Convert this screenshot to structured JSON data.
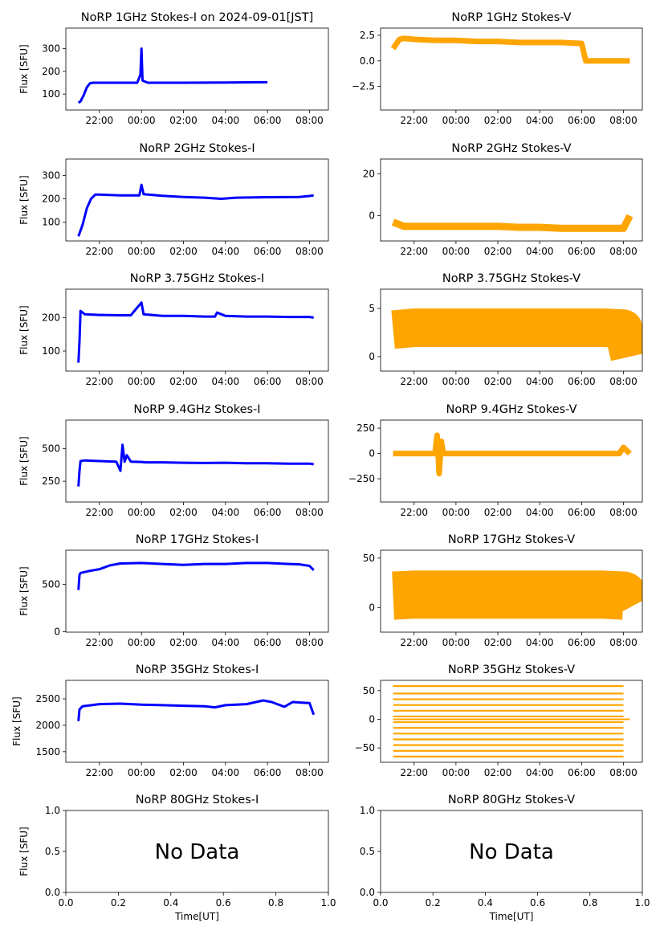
{
  "figure": {
    "x_label": "Time[UT]",
    "y_label": "Flux [SFU]",
    "no_data_text": "No Data",
    "colors": {
      "stokes_i": "#0000ff",
      "stokes_v": "#ffa500"
    },
    "time_ticks": [
      "22:00",
      "00:00",
      "02:00",
      "04:00",
      "06:00",
      "08:00"
    ],
    "time_tick_hours": [
      22,
      24,
      26,
      28,
      30,
      32
    ],
    "xlim_hours": [
      20.4,
      32.9
    ]
  },
  "chart_data": [
    {
      "type": "line",
      "title": "NoRP 1GHz Stokes-I on 2024-09-01[JST]",
      "ylabel": "Flux [SFU]",
      "xlabel": "",
      "color": "#0000ff",
      "ylim": [
        30,
        390
      ],
      "yticks": [
        100,
        200,
        300
      ],
      "series": [
        {
          "x": [
            21.0,
            21.1,
            21.25,
            21.4,
            21.55,
            21.7,
            22.5,
            23.0,
            23.8,
            23.95,
            24.0,
            24.05,
            24.3,
            26.0,
            28.0,
            29.5,
            30.0
          ],
          "y": [
            62,
            68,
            95,
            130,
            148,
            150,
            150,
            150,
            150,
            185,
            300,
            160,
            150,
            150,
            151,
            152,
            152
          ]
        }
      ]
    },
    {
      "type": "line",
      "title": "NoRP 1GHz Stokes-V",
      "ylabel": "",
      "xlabel": "",
      "color": "#ffa500",
      "ylim": [
        -4.8,
        3.2
      ],
      "yticks": [
        -2.5,
        0.0,
        2.5
      ],
      "ytick_labels": [
        "−2.5",
        "0.0",
        "2.5"
      ],
      "series": [
        {
          "x": [
            21.0,
            21.3,
            21.5,
            22.0,
            23.0,
            24.0,
            25.0,
            26.0,
            27.0,
            28.0,
            29.0,
            30.0,
            30.2,
            32.3
          ],
          "y": [
            1.2,
            2.1,
            2.2,
            2.1,
            2.0,
            2.0,
            1.9,
            1.9,
            1.8,
            1.8,
            1.8,
            1.7,
            0.0,
            0.0
          ]
        }
      ]
    },
    {
      "type": "line",
      "title": "NoRP 2GHz Stokes-I",
      "ylabel": "Flux [SFU]",
      "xlabel": "",
      "color": "#0000ff",
      "ylim": [
        20,
        370
      ],
      "yticks": [
        100,
        200,
        300
      ],
      "series": [
        {
          "x": [
            21.0,
            21.2,
            21.4,
            21.6,
            21.8,
            22.0,
            23.0,
            23.9,
            24.0,
            24.1,
            25.0,
            26.0,
            27.0,
            27.8,
            28.5,
            30.0,
            31.5,
            32.0,
            32.2
          ],
          "y": [
            40,
            90,
            160,
            200,
            218,
            218,
            215,
            215,
            260,
            220,
            213,
            208,
            205,
            200,
            205,
            207,
            208,
            212,
            215
          ]
        }
      ]
    },
    {
      "type": "line",
      "title": "NoRP 2GHz Stokes-V",
      "ylabel": "",
      "xlabel": "",
      "color": "#ffa500",
      "ylim": [
        -12,
        27
      ],
      "yticks": [
        0,
        20
      ],
      "series": [
        {
          "x": [
            21.0,
            21.5,
            22.0,
            23.0,
            24.0,
            25.0,
            26.0,
            27.0,
            28.0,
            29.0,
            30.0,
            31.0,
            32.0,
            32.3
          ],
          "y": [
            -3,
            -5,
            -5,
            -5,
            -5,
            -5,
            -5,
            -5.5,
            -5.5,
            -6,
            -6,
            -6,
            -6,
            0
          ]
        }
      ]
    },
    {
      "type": "line",
      "title": "NoRP 3.75GHz Stokes-I",
      "ylabel": "Flux [SFU]",
      "xlabel": "",
      "color": "#0000ff",
      "ylim": [
        40,
        285
      ],
      "yticks": [
        100,
        200
      ],
      "series": [
        {
          "x": [
            21.0,
            21.05,
            21.1,
            21.3,
            22.0,
            23.0,
            23.5,
            23.6,
            24.0,
            24.1,
            25.0,
            26.0,
            27.0,
            27.5,
            27.6,
            28.0,
            29.0,
            30.0,
            31.0,
            32.0,
            32.2
          ],
          "y": [
            65,
            130,
            220,
            210,
            208,
            207,
            207,
            215,
            245,
            210,
            205,
            205,
            203,
            203,
            215,
            205,
            203,
            203,
            202,
            202,
            200
          ]
        }
      ]
    },
    {
      "type": "line",
      "title": "NoRP 3.75GHz Stokes-V",
      "ylabel": "",
      "xlabel": "",
      "color": "#ffa500",
      "ylim": [
        -1.5,
        7.0
      ],
      "yticks": [
        0,
        5
      ],
      "series": [
        {
          "x": [
            21.0,
            22.0,
            23.0,
            24.0,
            25.0,
            26.0,
            27.0,
            28.0,
            29.0,
            30.0,
            31.0,
            32.0,
            32.3
          ],
          "y": [
            2.8,
            3.0,
            3.0,
            3.0,
            3.0,
            3.0,
            3.0,
            3.0,
            3.0,
            3.0,
            3.0,
            2.9,
            0.0
          ]
        }
      ]
    },
    {
      "type": "line",
      "title": "NoRP 9.4GHz Stokes-I",
      "ylabel": "Flux [SFU]",
      "xlabel": "",
      "color": "#0000ff",
      "ylim": [
        90,
        720
      ],
      "yticks": [
        250,
        500
      ],
      "series": [
        {
          "x": [
            21.0,
            21.05,
            21.1,
            21.3,
            22.0,
            22.8,
            23.0,
            23.1,
            23.2,
            23.3,
            23.5,
            24.0,
            24.2,
            25.0,
            26.0,
            27.0,
            28.0,
            29.0,
            30.0,
            31.0,
            32.0,
            32.2
          ],
          "y": [
            210,
            330,
            405,
            410,
            405,
            400,
            330,
            530,
            400,
            450,
            400,
            398,
            395,
            395,
            392,
            390,
            392,
            388,
            388,
            385,
            385,
            380
          ]
        }
      ]
    },
    {
      "type": "line",
      "title": "NoRP 9.4GHz Stokes-V",
      "ylabel": "",
      "xlabel": "",
      "color": "#ffa500",
      "ylim": [
        -480,
        330
      ],
      "yticks": [
        -250,
        0,
        250
      ],
      "ytick_labels": [
        "−250",
        "0",
        "250"
      ],
      "series": [
        {
          "x": [
            21.0,
            22.0,
            23.0,
            23.1,
            23.2,
            23.3,
            23.4,
            24.0,
            26.0,
            28.0,
            30.0,
            31.8,
            32.0,
            32.3
          ],
          "y": [
            0,
            0,
            0,
            180,
            -200,
            120,
            0,
            0,
            0,
            0,
            0,
            0,
            60,
            0
          ]
        }
      ]
    },
    {
      "type": "line",
      "title": "NoRP 17GHz Stokes-I",
      "ylabel": "Flux [SFU]",
      "xlabel": "",
      "color": "#0000ff",
      "ylim": [
        -5,
        860
      ],
      "yticks": [
        0,
        500
      ],
      "series": [
        {
          "x": [
            21.0,
            21.05,
            21.1,
            21.5,
            22.0,
            22.5,
            23.0,
            24.0,
            25.0,
            26.0,
            27.0,
            28.0,
            29.0,
            30.0,
            31.0,
            31.5,
            32.0,
            32.2
          ],
          "y": [
            440,
            600,
            620,
            640,
            660,
            700,
            720,
            725,
            715,
            705,
            715,
            715,
            725,
            725,
            715,
            712,
            695,
            650
          ]
        }
      ]
    },
    {
      "type": "line",
      "title": "NoRP 17GHz Stokes-V",
      "ylabel": "",
      "xlabel": "",
      "color": "#ffa500",
      "ylim": [
        -25,
        58
      ],
      "yticks": [
        0,
        50
      ],
      "series": [
        {
          "x": [
            21.0,
            22.0,
            23.0,
            24.0,
            25.0,
            26.0,
            27.0,
            28.0,
            29.0,
            30.0,
            31.0,
            32.0,
            32.3
          ],
          "y": [
            12,
            13,
            13,
            13,
            13,
            13,
            13,
            13,
            13,
            13,
            13,
            12,
            0
          ]
        }
      ]
    },
    {
      "type": "line",
      "title": "NoRP 35GHz Stokes-I",
      "ylabel": "Flux [SFU]",
      "xlabel": "",
      "color": "#0000ff",
      "ylim": [
        1300,
        2850
      ],
      "yticks": [
        1500,
        2000,
        2500
      ],
      "series": [
        {
          "x": [
            21.0,
            21.05,
            21.2,
            22.0,
            23.0,
            24.0,
            25.0,
            26.0,
            27.0,
            27.5,
            28.0,
            29.0,
            29.8,
            30.2,
            30.8,
            31.2,
            32.0,
            32.2
          ],
          "y": [
            2080,
            2300,
            2360,
            2400,
            2410,
            2390,
            2380,
            2370,
            2360,
            2340,
            2380,
            2400,
            2470,
            2440,
            2350,
            2440,
            2420,
            2200
          ]
        }
      ]
    },
    {
      "type": "line",
      "title": "NoRP 35GHz Stokes-V",
      "ylabel": "",
      "xlabel": "",
      "color": "#ffa500",
      "ylim": [
        -75,
        68
      ],
      "yticks": [
        -50,
        0,
        50
      ],
      "ytick_labels": [
        "−50",
        "0",
        "50"
      ],
      "series": [
        {
          "x": [
            21.0,
            32.3
          ],
          "y": [
            0,
            0
          ]
        }
      ],
      "levels": [
        -65,
        -55,
        -45,
        -35,
        -25,
        -15,
        -5,
        5,
        15,
        25,
        35,
        45,
        58
      ]
    },
    {
      "type": "line",
      "title": "NoRP 80GHz Stokes-I",
      "ylabel": "Flux [SFU]",
      "xlabel": "Time[UT]",
      "no_data": true,
      "xlim": [
        0.0,
        1.0
      ],
      "ylim": [
        0.0,
        1.0
      ],
      "xticks": [
        "0.0",
        "0.2",
        "0.4",
        "0.6",
        "0.8",
        "1.0"
      ],
      "yticks": [
        "0.0",
        "0.5",
        "1.0"
      ]
    },
    {
      "type": "line",
      "title": "NoRP 80GHz Stokes-V",
      "ylabel": "",
      "xlabel": "Time[UT]",
      "no_data": true,
      "xlim": [
        0.0,
        1.0
      ],
      "ylim": [
        0.0,
        1.0
      ],
      "xticks": [
        "0.0",
        "0.2",
        "0.4",
        "0.6",
        "0.8",
        "1.0"
      ],
      "yticks": [
        "0.0",
        "0.5",
        "1.0"
      ]
    }
  ]
}
